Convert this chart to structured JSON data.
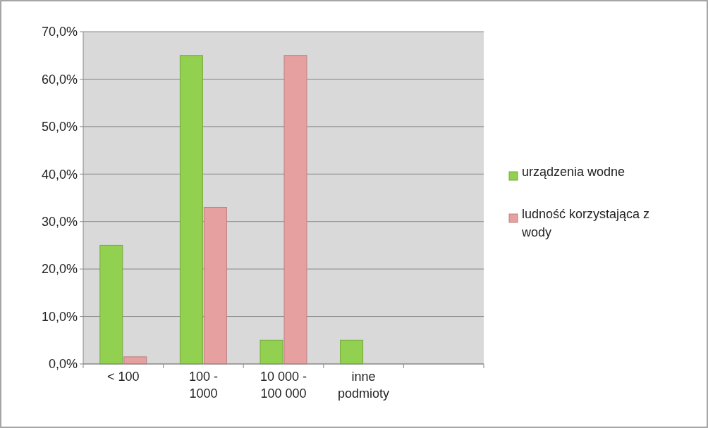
{
  "chart_data": {
    "type": "bar",
    "categories": [
      "< 100",
      "100 - 1000",
      "10 000 - 100 000",
      "inne podmioty",
      null
    ],
    "series": [
      {
        "name": "urządzenia wodne",
        "color": "#92d050",
        "values": [
          25,
          65,
          5,
          5,
          null
        ]
      },
      {
        "name": "ludność korzystająca z wody",
        "color": "#e6a0a0",
        "values": [
          1.5,
          33,
          65,
          null,
          null
        ]
      }
    ],
    "ylim": [
      0,
      70
    ],
    "yticks": [
      {
        "value": 0,
        "label": "0,0%"
      },
      {
        "value": 10,
        "label": "10,0%"
      },
      {
        "value": 20,
        "label": "20,0%"
      },
      {
        "value": 30,
        "label": "30,0%"
      },
      {
        "value": 40,
        "label": "40,0%"
      },
      {
        "value": 50,
        "label": "50,0%"
      },
      {
        "value": 60,
        "label": "60,0%"
      },
      {
        "value": 70,
        "label": "70,0%"
      }
    ],
    "grid": "y",
    "legend": "right"
  }
}
